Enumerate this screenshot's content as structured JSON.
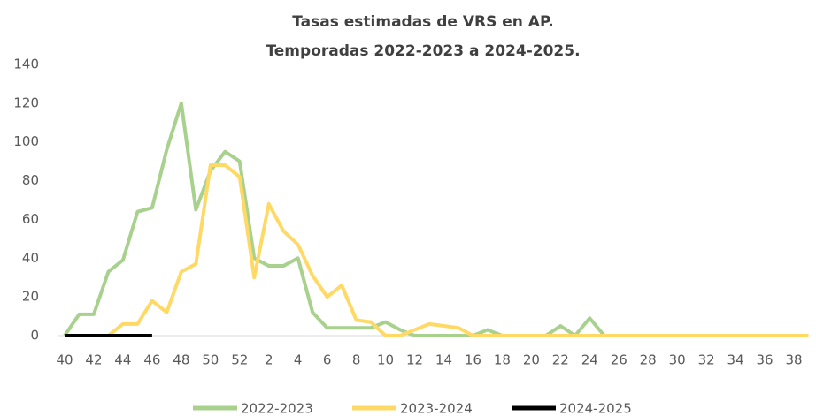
{
  "chart_data": {
    "type": "line",
    "title": "Tasas estimadas de VRS en AP.",
    "subtitle": "Temporadas 2022-2023 a 2024-2025.",
    "categories": [
      "40",
      null,
      "42",
      null,
      "44",
      null,
      "46",
      null,
      "48",
      null,
      "50",
      null,
      "52",
      null,
      "2",
      null,
      "4",
      null,
      "6",
      null,
      "8",
      null,
      "10",
      null,
      "12",
      null,
      "14",
      null,
      "16",
      null,
      "18",
      null,
      "20",
      null,
      "22",
      null,
      "24",
      null,
      "26",
      null,
      "28",
      null,
      "30",
      null,
      "32",
      null,
      "34",
      null,
      "36",
      null,
      "38",
      null
    ],
    "series": [
      {
        "name": "2022-2023",
        "color": "#a9d18e",
        "values": [
          0,
          11,
          11,
          33,
          39,
          64,
          66,
          96,
          120,
          65,
          85,
          95,
          90,
          40,
          36,
          36,
          40,
          12,
          4,
          4,
          4,
          4,
          7,
          3,
          0,
          0,
          0,
          0,
          0,
          3,
          0,
          0,
          0,
          0,
          5,
          0,
          9,
          0,
          0,
          0,
          0,
          0,
          0,
          0,
          0,
          0,
          0,
          0,
          0,
          0,
          0,
          0
        ]
      },
      {
        "name": "2023-2024",
        "color": "#ffd966",
        "values": [
          0,
          0,
          0,
          0,
          6,
          6,
          18,
          12,
          33,
          37,
          88,
          88,
          82,
          30,
          68,
          54,
          47,
          31,
          20,
          26,
          8,
          7,
          0,
          0,
          3,
          6,
          5,
          4,
          0,
          0,
          0,
          0,
          0,
          0,
          0,
          0,
          0,
          0,
          0,
          0,
          0,
          0,
          0,
          0,
          0,
          0,
          0,
          0,
          0,
          0,
          0,
          0
        ]
      },
      {
        "name": "2024-2025",
        "color": "#000000",
        "values": [
          0,
          0,
          0,
          0,
          0,
          0,
          0,
          null,
          null,
          null,
          null,
          null,
          null,
          null,
          null,
          null,
          null,
          null,
          null,
          null,
          null,
          null,
          null,
          null,
          null,
          null,
          null,
          null,
          null,
          null,
          null,
          null,
          null,
          null,
          null,
          null,
          null,
          null,
          null,
          null,
          null,
          null,
          null,
          null,
          null,
          null,
          null,
          null,
          null,
          null,
          null,
          null
        ]
      }
    ],
    "ylim": [
      0,
      140
    ],
    "yticks": [
      0,
      20,
      40,
      60,
      80,
      100,
      120,
      140
    ],
    "grid": false,
    "legend": "bottom"
  }
}
